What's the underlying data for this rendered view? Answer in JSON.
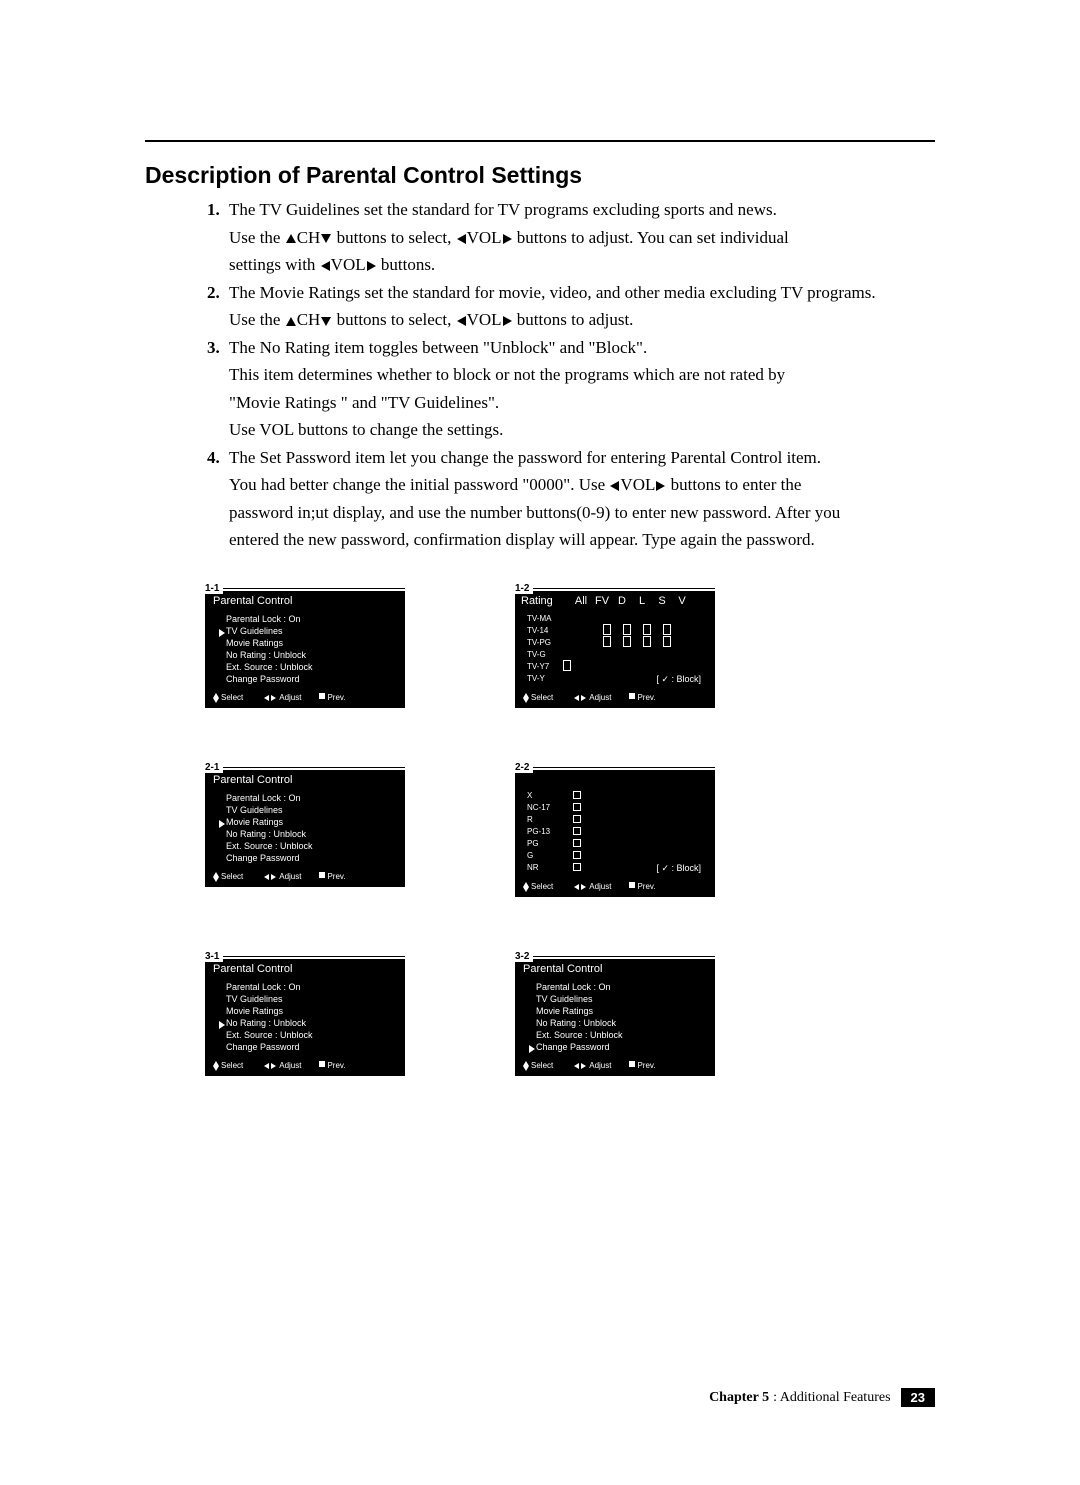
{
  "title": "Description of Parental Control Settings",
  "items": [
    {
      "num": "1.",
      "lines": [
        "The TV Guidelines set the standard for TV programs excluding sports and news.",
        "Use the  ▲CH▼ buttons to select,  ◀VOL▶ buttons to adjust. You can set individual",
        "settings with  ◀VOL▶ buttons."
      ]
    },
    {
      "num": "2.",
      "lines": [
        "The Movie Ratings set the standard for movie, video, and other media excluding TV programs.",
        "Use the  ▲CH▼ buttons to select,  ◀VOL▶ buttons to adjust."
      ]
    },
    {
      "num": "3.",
      "lines": [
        "The No Rating item toggles between \"Unblock\" and \"Block\".",
        "This item determines whether to block or not the programs which are not rated by",
        "\"Movie Ratings \" and \"TV Guidelines\".",
        "Use VOL buttons to change the settings."
      ]
    },
    {
      "num": "4.",
      "lines": [
        "The Set Password item let you change the password for entering Parental Control item.",
        "You had better change the initial password \"0000\". Use  ◀VOL▶ buttons to enter the",
        "password in;ut display, and use the number buttons(0-9) to enter new password. After you",
        "entered the new password, confirmation display will appear. Type again the password."
      ]
    }
  ],
  "footer": {
    "chapter": "Chapter 5",
    "label": ": Additional Features",
    "page": "23"
  },
  "menu_footer": {
    "select": "Select",
    "adjust": "Adjust",
    "prev": "Prev."
  },
  "screens": {
    "s11": {
      "label": "1-1",
      "title": "Parental Control",
      "items": [
        {
          "t": "Parental Lock : On"
        },
        {
          "t": "TV Guidelines",
          "sel": true
        },
        {
          "t": "Movie Ratings"
        },
        {
          "t": "No Rating : Unblock"
        },
        {
          "t": "Ext. Source : Unblock"
        },
        {
          "t": "Change Password"
        }
      ]
    },
    "s21": {
      "label": "2-1",
      "title": "Parental Control",
      "items": [
        {
          "t": "Parental Lock : On"
        },
        {
          "t": "TV Guidelines"
        },
        {
          "t": "Movie Ratings",
          "sel": true
        },
        {
          "t": "No Rating : Unblock"
        },
        {
          "t": "Ext. Source : Unblock"
        },
        {
          "t": "Change Password"
        }
      ]
    },
    "s31": {
      "label": "3-1",
      "title": "Parental Control",
      "items": [
        {
          "t": "Parental Lock : On"
        },
        {
          "t": "TV Guidelines"
        },
        {
          "t": "Movie Ratings"
        },
        {
          "t": "No Rating : Unblock",
          "sel": true
        },
        {
          "t": "Ext. Source : Unblock"
        },
        {
          "t": "Change Password"
        }
      ]
    },
    "s32": {
      "label": "3-2",
      "title": "Parental Control",
      "items": [
        {
          "t": "Parental Lock : On"
        },
        {
          "t": "TV Guidelines"
        },
        {
          "t": "Movie Ratings"
        },
        {
          "t": "No Rating : Unblock"
        },
        {
          "t": "Ext. Source : Unblock"
        },
        {
          "t": "Change Password",
          "sel": true
        }
      ]
    },
    "s12": {
      "label": "1-2",
      "head": [
        "Rating",
        "All",
        "FV",
        "D",
        "L",
        "S",
        "V"
      ],
      "rows": [
        {
          "l": "TV-MA"
        },
        {
          "l": "TV-14"
        },
        {
          "l": "TV-PG"
        },
        {
          "l": "TV-G"
        },
        {
          "l": "TV-Y7"
        },
        {
          "l": "TV-Y"
        }
      ],
      "note": "[ ✓ : Block]"
    },
    "s22": {
      "label": "2-2",
      "rows": [
        "X",
        "NC-17",
        "R",
        "PG-13",
        "PG",
        "G",
        "NR"
      ],
      "note": "[ ✓ : Block]"
    }
  }
}
